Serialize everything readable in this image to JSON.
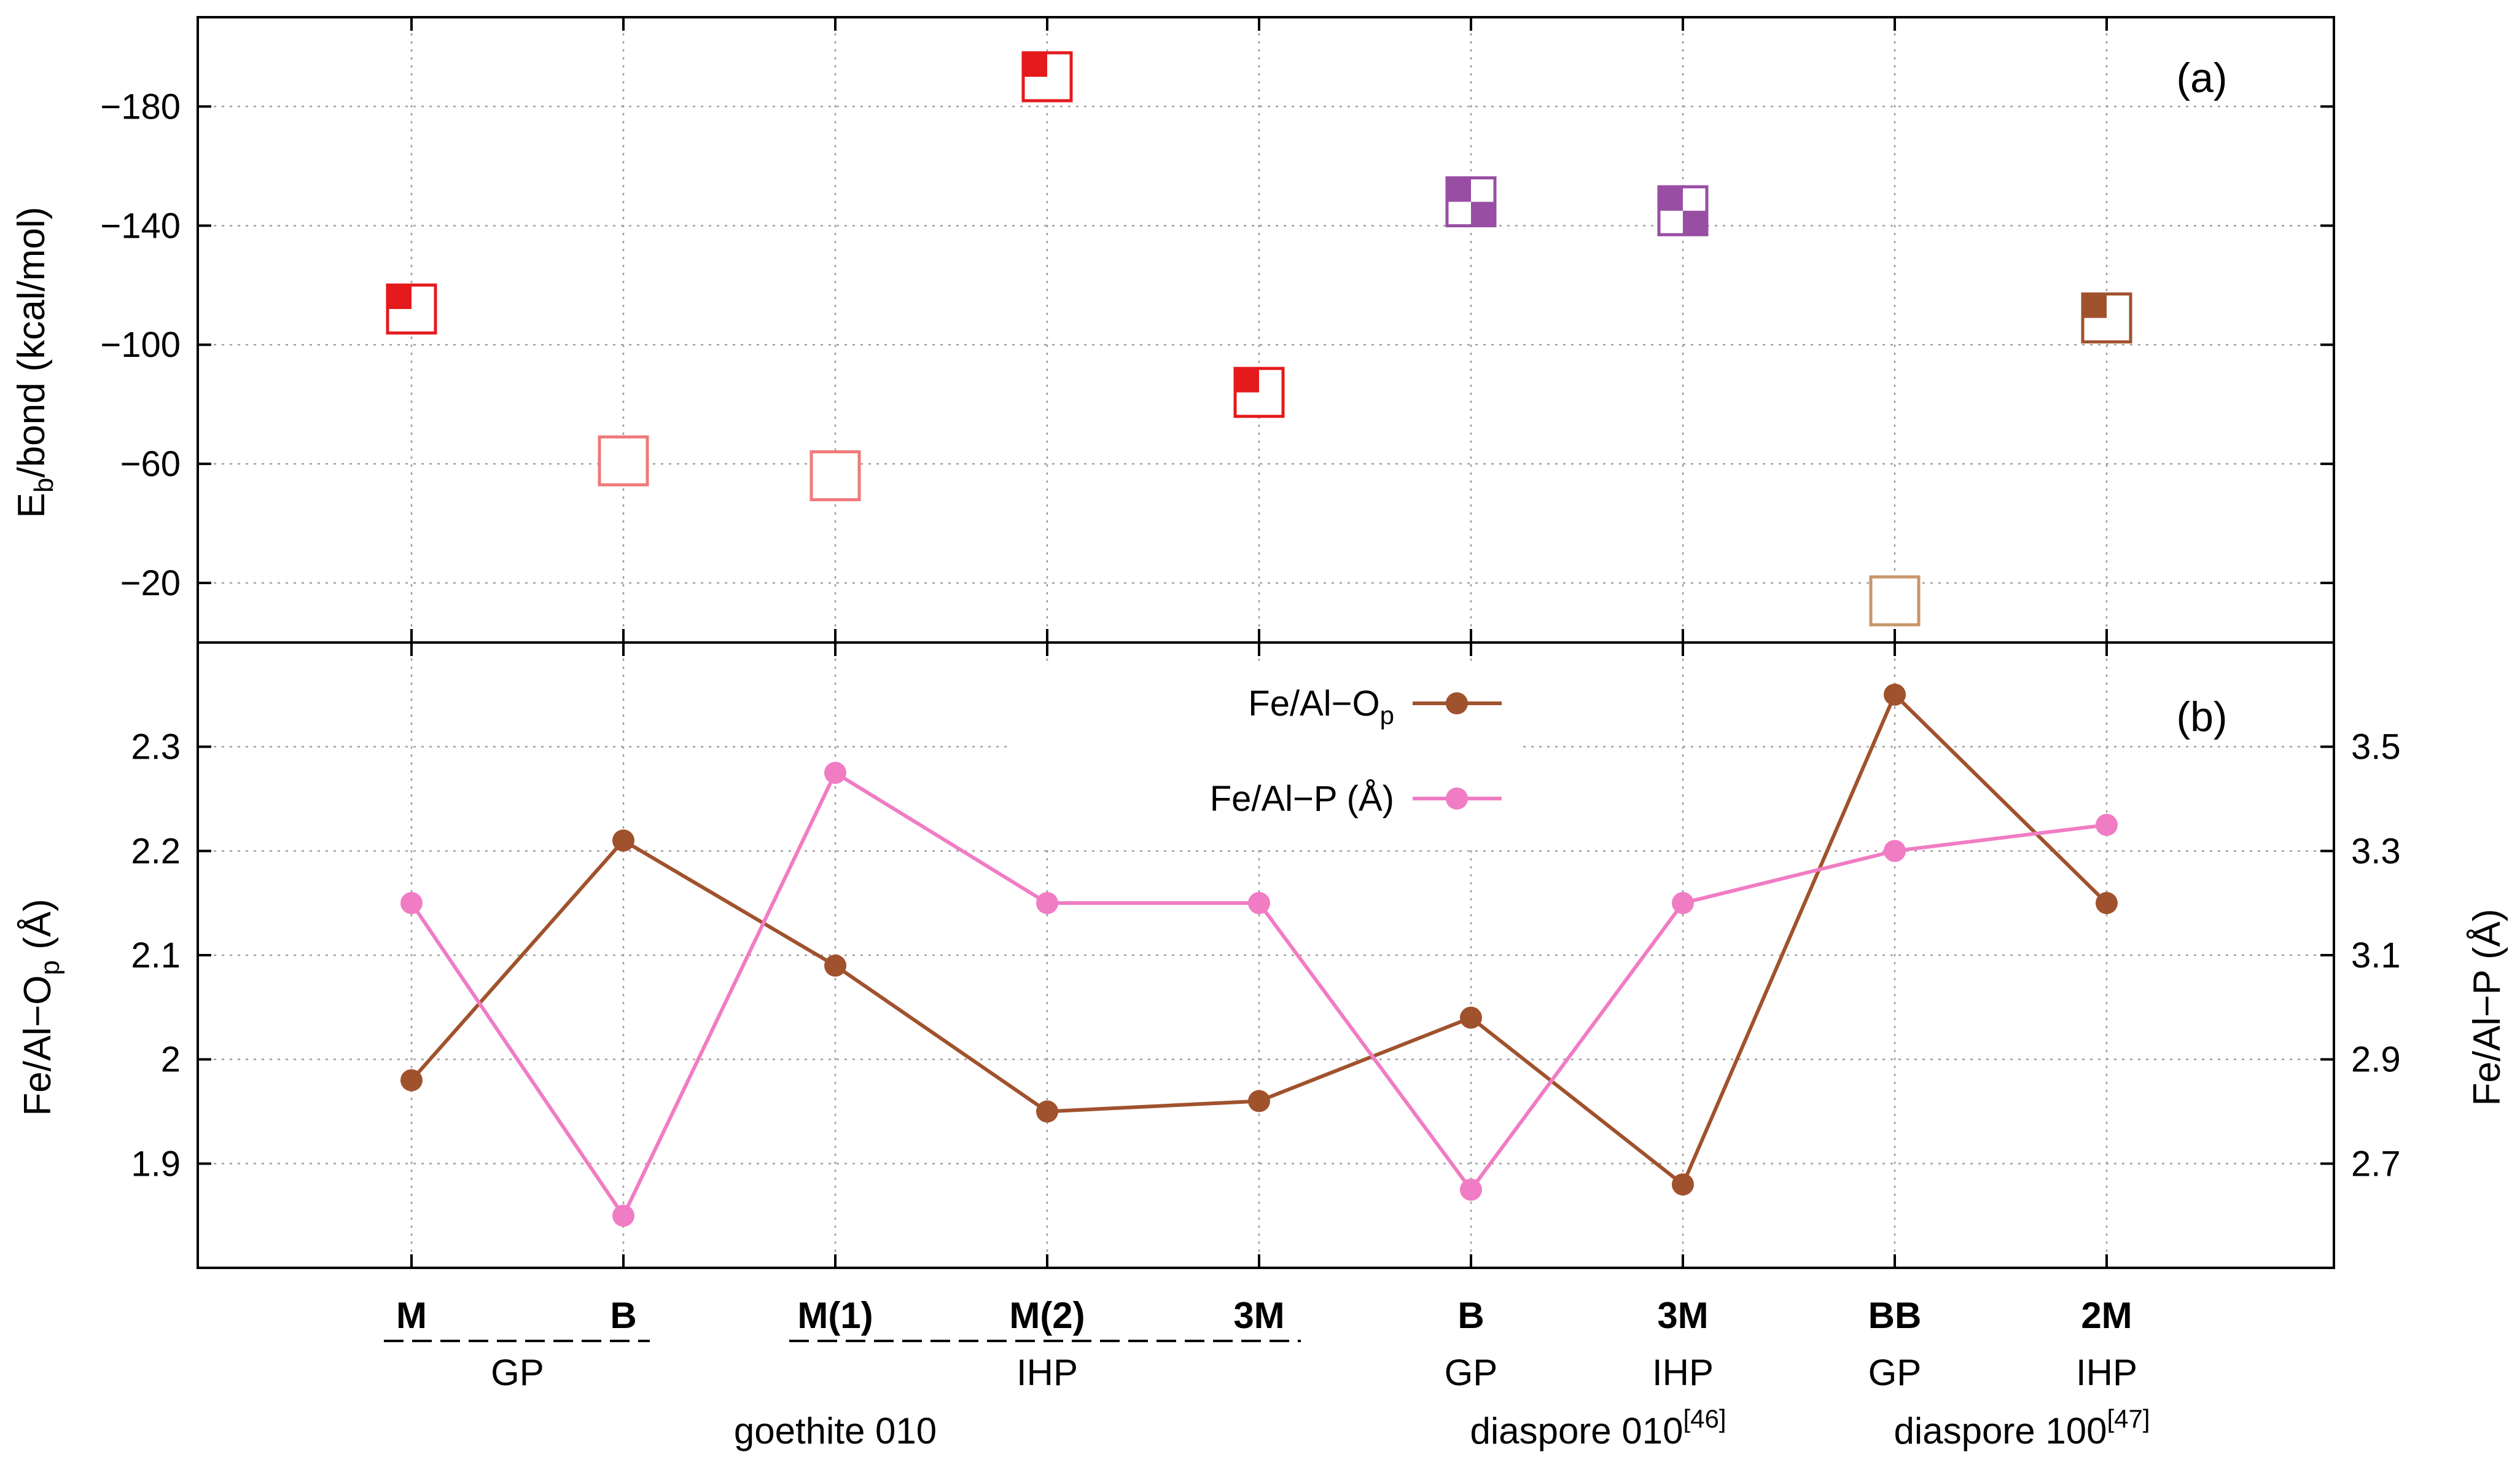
{
  "chart_data": [
    {
      "panel": "(a)",
      "type": "scatter",
      "ylabel_main": "E",
      "ylabel_sub": "b",
      "ylabel_rest": "/bond (kcal/mol)",
      "yticks": [
        "−180",
        "−140",
        "−100",
        "−60",
        "−20"
      ],
      "ytick_values": [
        -180,
        -140,
        -100,
        -60,
        -20
      ],
      "ylim": [
        0,
        -210
      ],
      "x": [
        1,
        2,
        3,
        4,
        5,
        6,
        7,
        8,
        9
      ],
      "points": [
        {
          "x": 1,
          "y": -112,
          "color": "#e41a1c",
          "fill": "tl"
        },
        {
          "x": 2,
          "y": -61,
          "color": "#f07a7a",
          "fill": "none"
        },
        {
          "x": 3,
          "y": -56,
          "color": "#f07a7a",
          "fill": "none"
        },
        {
          "x": 4,
          "y": -190,
          "color": "#e41a1c",
          "fill": "tl"
        },
        {
          "x": 5,
          "y": -84,
          "color": "#e41a1c",
          "fill": "tl"
        },
        {
          "x": 6,
          "y": -148,
          "color": "#984ea3",
          "fill": "checker"
        },
        {
          "x": 7,
          "y": -145,
          "color": "#984ea3",
          "fill": "checker"
        },
        {
          "x": 8,
          "y": -14,
          "color": "#c8956a",
          "fill": "none"
        },
        {
          "x": 9,
          "y": -109,
          "color": "#a0522d",
          "fill": "tl"
        }
      ]
    },
    {
      "panel": "(b)",
      "type": "line",
      "ylabel_left_main": "Fe/Al−O",
      "ylabel_left_sub": "p",
      "ylabel_left_rest": " (Å)",
      "ylabel_right": "Fe/Al−P (Å)",
      "yticks_left": [
        "2.3",
        "2.2",
        "2.1",
        "2",
        "1.9"
      ],
      "ytick_left_values": [
        2.3,
        2.2,
        2.1,
        2.0,
        1.9
      ],
      "ylim_left": [
        1.8,
        2.4
      ],
      "yticks_right": [
        "3.5",
        "3.3",
        "3.1",
        "2.9",
        "2.7"
      ],
      "ytick_right_values": [
        3.5,
        3.3,
        3.1,
        2.9,
        2.7
      ],
      "ylim_right": [
        2.5,
        3.7
      ],
      "x": [
        1,
        2,
        3,
        4,
        5,
        6,
        7,
        8,
        9
      ],
      "series": [
        {
          "legend_main": "Fe/Al−O",
          "legend_sub": "p",
          "axis": "left",
          "color": "#a0522d",
          "values": [
            1.98,
            2.21,
            2.09,
            1.95,
            1.96,
            2.04,
            1.88,
            2.35,
            2.15
          ]
        },
        {
          "legend_main": "Fe/Al−P (Å)",
          "axis": "right",
          "color": "#f07cc4",
          "values": [
            3.2,
            2.6,
            3.45,
            3.2,
            3.2,
            2.65,
            3.2,
            3.3,
            3.35
          ]
        }
      ]
    }
  ],
  "x_axis": {
    "categories": [
      "M",
      "B",
      "M(1)",
      "M(2)",
      "3M",
      "B",
      "3M",
      "BB",
      "2M"
    ],
    "sublabels": [
      {
        "text": "GP",
        "at": 1.5
      },
      {
        "text": "IHP",
        "at": 4
      },
      {
        "text": "GP",
        "at": 6
      },
      {
        "text": "IHP",
        "at": 7
      },
      {
        "text": "GP",
        "at": 8
      },
      {
        "text": "IHP",
        "at": 9
      }
    ],
    "groups": [
      {
        "text": "goethite 010",
        "ref": "",
        "at": 3
      },
      {
        "text": "diaspore 010",
        "ref": "[46]",
        "at": 6.6
      },
      {
        "text": "diaspore 100",
        "ref": "[47]",
        "at": 8.6
      }
    ]
  }
}
